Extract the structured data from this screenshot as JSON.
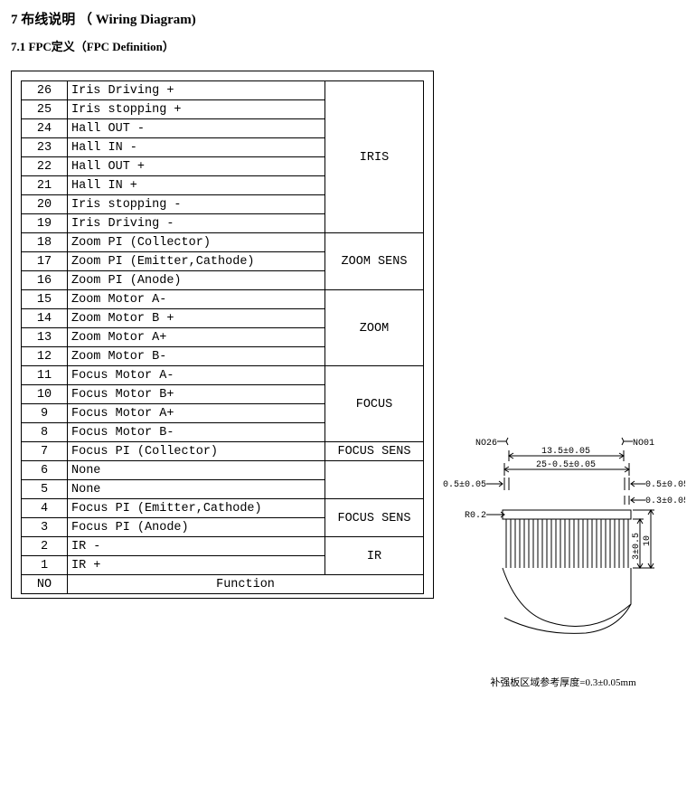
{
  "heading": "7 布线说明 （ Wiring Diagram)",
  "subheading": "7.1 FPC定义（FPC  Definition）",
  "table": {
    "header": {
      "no": "NO",
      "func": "Function"
    },
    "rows": [
      {
        "no": "26",
        "func": "Iris Driving +"
      },
      {
        "no": "25",
        "func": "Iris stopping +"
      },
      {
        "no": "24",
        "func": "Hall OUT -"
      },
      {
        "no": "23",
        "func": "Hall IN -"
      },
      {
        "no": "22",
        "func": "Hall OUT +"
      },
      {
        "no": "21",
        "func": "Hall IN +"
      },
      {
        "no": "20",
        "func": "Iris stopping -"
      },
      {
        "no": "19",
        "func": "Iris Driving -"
      },
      {
        "no": "18",
        "func": "Zoom PI (Collector)"
      },
      {
        "no": "17",
        "func": "Zoom PI (Emitter,Cathode)"
      },
      {
        "no": "16",
        "func": "Zoom PI (Anode)"
      },
      {
        "no": "15",
        "func": "Zoom  Motor A-"
      },
      {
        "no": "14",
        "func": "Zoom  Motor B +"
      },
      {
        "no": "13",
        "func": "Zoom  Motor A+"
      },
      {
        "no": "12",
        "func": "Zoom  Motor B-"
      },
      {
        "no": "11",
        "func": "Focus Motor A-"
      },
      {
        "no": "10",
        "func": "Focus Motor B+"
      },
      {
        "no": "9",
        "func": "Focus Motor A+"
      },
      {
        "no": "8",
        "func": "Focus Motor B-"
      },
      {
        "no": "7",
        "func": "Focus PI (Collector)"
      },
      {
        "no": "6",
        "func": "None"
      },
      {
        "no": "5",
        "func": "None"
      },
      {
        "no": "4",
        "func": "Focus  PI (Emitter,Cathode)"
      },
      {
        "no": "3",
        "func": "Focus  PI (Anode)"
      },
      {
        "no": "2",
        "func": "IR  -"
      },
      {
        "no": "1",
        "func": "IR  +"
      }
    ],
    "groups": [
      {
        "label": "IRIS",
        "span": 8
      },
      {
        "label": "ZOOM  SENS",
        "span": 3
      },
      {
        "label": "ZOOM",
        "span": 4
      },
      {
        "label": "FOCUS",
        "span": 4
      },
      {
        "label": "FOCUS SENS",
        "span": 1
      },
      {
        "label": "",
        "span": 2
      },
      {
        "label": "FOCUS SENS",
        "span": 2
      },
      {
        "label": "IR",
        "span": 2
      }
    ],
    "footer_extra_span": 2
  },
  "diagram": {
    "no26": "NO26",
    "no01": "NO01",
    "dim_13_5": "13.5±0.05",
    "dim_25": "25-0.5±0.05",
    "dim_0_5_left": "0.5±0.05",
    "dim_0_5_right": "0.5±0.05",
    "dim_0_3": "0.3±0.05",
    "dim_r02": "R0.2",
    "dim_3": "3±0.5",
    "dim_10": "10",
    "caption": "补强板区域参考厚度=0.3±0.05mm"
  }
}
